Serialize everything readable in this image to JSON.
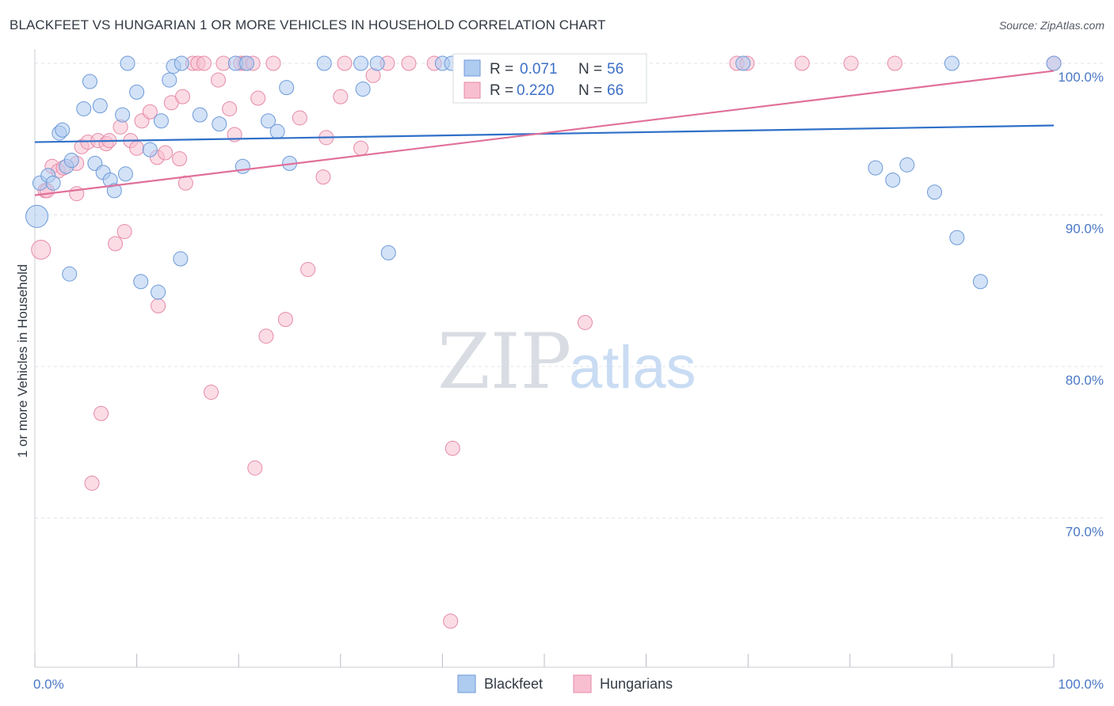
{
  "header": {
    "title": "BLACKFEET VS HUNGARIAN 1 OR MORE VEHICLES IN HOUSEHOLD CORRELATION CHART",
    "source": "Source: ZipAtlas.com"
  },
  "watermark": {
    "zip": "ZIP",
    "atlas": "atlas"
  },
  "legend": {
    "r_label": "R =",
    "n_label": "N =",
    "rows": [
      {
        "series": "Blackfeet",
        "r": "0.071",
        "n": "56"
      },
      {
        "series": "Hungarians",
        "r": "0.220",
        "n": "66"
      }
    ]
  },
  "colors": {
    "blackfeet_fill": "#aecbf0",
    "blackfeet_stroke": "#6d9ad8",
    "blackfeet_line": "#2f70c8",
    "hungarians_fill": "#f8bfd0",
    "hungarians_stroke": "#e68aa8",
    "hungarians_line": "#e0709a",
    "tick_label": "#4a78c4",
    "grid": "#dfe3ea"
  },
  "chart_data": {
    "type": "scatter",
    "xlabel": "",
    "ylabel": "1 or more Vehicles in Household",
    "xlim": [
      0,
      100
    ],
    "ylim": [
      60.5,
      101.5
    ],
    "x_tick_labels": [
      {
        "value": 0,
        "label": "0.0%"
      },
      {
        "value": 100,
        "label": "100.0%"
      }
    ],
    "y_tick_labels": [
      {
        "value": 100,
        "label": "100.0%"
      },
      {
        "value": 90,
        "label": "90.0%"
      },
      {
        "value": 80,
        "label": "80.0%"
      },
      {
        "value": 70,
        "label": "70.0%"
      }
    ],
    "x_minor_ticks": [
      0,
      10,
      20,
      30,
      40,
      50,
      60,
      70,
      80,
      90,
      100
    ],
    "grid": "horizontal dashed",
    "legend_placement": "top-center",
    "series": [
      {
        "name": "Blackfeet",
        "trend": {
          "x": [
            0,
            100
          ],
          "y": [
            94.8,
            95.9
          ]
        },
        "points": [
          {
            "x": 0.2,
            "y": 89.9,
            "r": 14
          },
          {
            "x": 0.5,
            "y": 92.1,
            "r": 9
          },
          {
            "x": 1.3,
            "y": 92.6,
            "r": 9
          },
          {
            "x": 1.8,
            "y": 92.1,
            "r": 9
          },
          {
            "x": 2.4,
            "y": 95.4,
            "r": 9
          },
          {
            "x": 3.1,
            "y": 93.2,
            "r": 9
          },
          {
            "x": 2.7,
            "y": 95.6,
            "r": 9
          },
          {
            "x": 3.6,
            "y": 93.6,
            "r": 9
          },
          {
            "x": 4.8,
            "y": 97.0,
            "r": 9
          },
          {
            "x": 5.4,
            "y": 98.8,
            "r": 9
          },
          {
            "x": 5.9,
            "y": 93.4,
            "r": 9
          },
          {
            "x": 6.4,
            "y": 97.2,
            "r": 9
          },
          {
            "x": 6.7,
            "y": 92.8,
            "r": 9
          },
          {
            "x": 7.4,
            "y": 92.3,
            "r": 9
          },
          {
            "x": 7.8,
            "y": 91.6,
            "r": 9
          },
          {
            "x": 8.6,
            "y": 96.6,
            "r": 9
          },
          {
            "x": 8.9,
            "y": 92.7,
            "r": 9
          },
          {
            "x": 9.1,
            "y": 100.0,
            "r": 9
          },
          {
            "x": 10.0,
            "y": 98.1,
            "r": 9
          },
          {
            "x": 10.4,
            "y": 85.6,
            "r": 9
          },
          {
            "x": 11.3,
            "y": 94.3,
            "r": 9
          },
          {
            "x": 12.1,
            "y": 84.9,
            "r": 9
          },
          {
            "x": 12.4,
            "y": 96.2,
            "r": 9
          },
          {
            "x": 13.2,
            "y": 98.9,
            "r": 9
          },
          {
            "x": 13.6,
            "y": 99.8,
            "r": 9
          },
          {
            "x": 14.3,
            "y": 87.1,
            "r": 9
          },
          {
            "x": 14.4,
            "y": 100.0,
            "r": 9
          },
          {
            "x": 16.2,
            "y": 96.6,
            "r": 9
          },
          {
            "x": 18.1,
            "y": 96.0,
            "r": 9
          },
          {
            "x": 19.7,
            "y": 100.0,
            "r": 9
          },
          {
            "x": 20.4,
            "y": 93.2,
            "r": 9
          },
          {
            "x": 20.8,
            "y": 100.0,
            "r": 9
          },
          {
            "x": 22.9,
            "y": 96.2,
            "r": 9
          },
          {
            "x": 23.8,
            "y": 95.5,
            "r": 9
          },
          {
            "x": 24.7,
            "y": 98.4,
            "r": 9
          },
          {
            "x": 25.0,
            "y": 93.4,
            "r": 9
          },
          {
            "x": 28.4,
            "y": 100.0,
            "r": 9
          },
          {
            "x": 3.4,
            "y": 86.1,
            "r": 9
          },
          {
            "x": 32.0,
            "y": 100.0,
            "r": 9
          },
          {
            "x": 32.2,
            "y": 98.3,
            "r": 9
          },
          {
            "x": 33.6,
            "y": 100.0,
            "r": 9
          },
          {
            "x": 34.7,
            "y": 87.5,
            "r": 9
          },
          {
            "x": 40.0,
            "y": 100.0,
            "r": 9
          },
          {
            "x": 40.9,
            "y": 100.0,
            "r": 9
          },
          {
            "x": 43.9,
            "y": 100.0,
            "r": 9
          },
          {
            "x": 47.7,
            "y": 100.0,
            "r": 9
          },
          {
            "x": 49.8,
            "y": 100.0,
            "r": 9
          },
          {
            "x": 50.6,
            "y": 100.0,
            "r": 9
          },
          {
            "x": 69.5,
            "y": 100.0,
            "r": 9
          },
          {
            "x": 82.5,
            "y": 93.1,
            "r": 9
          },
          {
            "x": 84.2,
            "y": 92.3,
            "r": 9
          },
          {
            "x": 85.6,
            "y": 93.3,
            "r": 9
          },
          {
            "x": 88.3,
            "y": 91.5,
            "r": 9
          },
          {
            "x": 90.0,
            "y": 100.0,
            "r": 9
          },
          {
            "x": 90.5,
            "y": 88.5,
            "r": 9
          },
          {
            "x": 92.8,
            "y": 85.6,
            "r": 9
          },
          {
            "x": 100.0,
            "y": 100.0,
            "r": 9
          }
        ]
      },
      {
        "name": "Hungarians",
        "trend": {
          "x": [
            0,
            100
          ],
          "y": [
            91.3,
            99.5
          ]
        },
        "points": [
          {
            "x": 0.6,
            "y": 87.7,
            "r": 12
          },
          {
            "x": 1.0,
            "y": 91.6,
            "r": 9
          },
          {
            "x": 1.2,
            "y": 91.6,
            "r": 9
          },
          {
            "x": 1.7,
            "y": 93.2,
            "r": 9
          },
          {
            "x": 2.3,
            "y": 92.9,
            "r": 9
          },
          {
            "x": 2.8,
            "y": 93.1,
            "r": 9
          },
          {
            "x": 4.1,
            "y": 93.4,
            "r": 9
          },
          {
            "x": 4.1,
            "y": 91.4,
            "r": 9
          },
          {
            "x": 4.6,
            "y": 94.5,
            "r": 9
          },
          {
            "x": 5.2,
            "y": 94.8,
            "r": 9
          },
          {
            "x": 5.6,
            "y": 72.3,
            "r": 9
          },
          {
            "x": 6.2,
            "y": 94.9,
            "r": 9
          },
          {
            "x": 6.5,
            "y": 76.9,
            "r": 9
          },
          {
            "x": 7.0,
            "y": 94.7,
            "r": 9
          },
          {
            "x": 7.3,
            "y": 94.9,
            "r": 9
          },
          {
            "x": 7.9,
            "y": 88.1,
            "r": 9
          },
          {
            "x": 8.4,
            "y": 95.8,
            "r": 9
          },
          {
            "x": 8.8,
            "y": 88.9,
            "r": 9
          },
          {
            "x": 9.4,
            "y": 94.9,
            "r": 9
          },
          {
            "x": 10.0,
            "y": 94.4,
            "r": 9
          },
          {
            "x": 10.5,
            "y": 96.2,
            "r": 9
          },
          {
            "x": 11.3,
            "y": 96.8,
            "r": 9
          },
          {
            "x": 12.0,
            "y": 93.8,
            "r": 9
          },
          {
            "x": 12.1,
            "y": 84.0,
            "r": 9
          },
          {
            "x": 12.8,
            "y": 94.1,
            "r": 9
          },
          {
            "x": 13.4,
            "y": 97.4,
            "r": 9
          },
          {
            "x": 14.2,
            "y": 93.7,
            "r": 9
          },
          {
            "x": 14.5,
            "y": 97.8,
            "r": 9
          },
          {
            "x": 14.8,
            "y": 92.1,
            "r": 9
          },
          {
            "x": 15.5,
            "y": 100.0,
            "r": 9
          },
          {
            "x": 16.0,
            "y": 100.0,
            "r": 9
          },
          {
            "x": 16.6,
            "y": 100.0,
            "r": 9
          },
          {
            "x": 17.3,
            "y": 78.3,
            "r": 9
          },
          {
            "x": 18.0,
            "y": 98.9,
            "r": 9
          },
          {
            "x": 18.5,
            "y": 100.0,
            "r": 9
          },
          {
            "x": 19.1,
            "y": 97.0,
            "r": 9
          },
          {
            "x": 19.6,
            "y": 95.3,
            "r": 9
          },
          {
            "x": 20.2,
            "y": 100.0,
            "r": 9
          },
          {
            "x": 20.6,
            "y": 100.0,
            "r": 9
          },
          {
            "x": 21.4,
            "y": 100.0,
            "r": 9
          },
          {
            "x": 21.6,
            "y": 73.3,
            "r": 9
          },
          {
            "x": 21.9,
            "y": 97.7,
            "r": 9
          },
          {
            "x": 22.7,
            "y": 82.0,
            "r": 9
          },
          {
            "x": 23.4,
            "y": 100.0,
            "r": 9
          },
          {
            "x": 24.6,
            "y": 83.1,
            "r": 9
          },
          {
            "x": 26.0,
            "y": 96.4,
            "r": 9
          },
          {
            "x": 26.8,
            "y": 86.4,
            "r": 9
          },
          {
            "x": 28.3,
            "y": 92.5,
            "r": 9
          },
          {
            "x": 28.6,
            "y": 95.1,
            "r": 9
          },
          {
            "x": 30.0,
            "y": 97.8,
            "r": 9
          },
          {
            "x": 30.4,
            "y": 100.0,
            "r": 9
          },
          {
            "x": 32.0,
            "y": 94.4,
            "r": 9
          },
          {
            "x": 33.2,
            "y": 99.2,
            "r": 9
          },
          {
            "x": 34.6,
            "y": 100.0,
            "r": 9
          },
          {
            "x": 36.7,
            "y": 100.0,
            "r": 9
          },
          {
            "x": 39.2,
            "y": 100.0,
            "r": 9
          },
          {
            "x": 41.0,
            "y": 74.6,
            "r": 9
          },
          {
            "x": 40.8,
            "y": 63.2,
            "r": 9
          },
          {
            "x": 44.6,
            "y": 100.0,
            "r": 9
          },
          {
            "x": 52.5,
            "y": 100.0,
            "r": 9
          },
          {
            "x": 54.0,
            "y": 82.9,
            "r": 9
          },
          {
            "x": 68.9,
            "y": 100.0,
            "r": 9
          },
          {
            "x": 69.9,
            "y": 100.0,
            "r": 9
          },
          {
            "x": 75.3,
            "y": 100.0,
            "r": 9
          },
          {
            "x": 80.1,
            "y": 100.0,
            "r": 9
          },
          {
            "x": 84.4,
            "y": 100.0,
            "r": 9
          },
          {
            "x": 100.0,
            "y": 100.0,
            "r": 9
          }
        ]
      }
    ],
    "bottom_legend": [
      "Blackfeet",
      "Hungarians"
    ]
  }
}
